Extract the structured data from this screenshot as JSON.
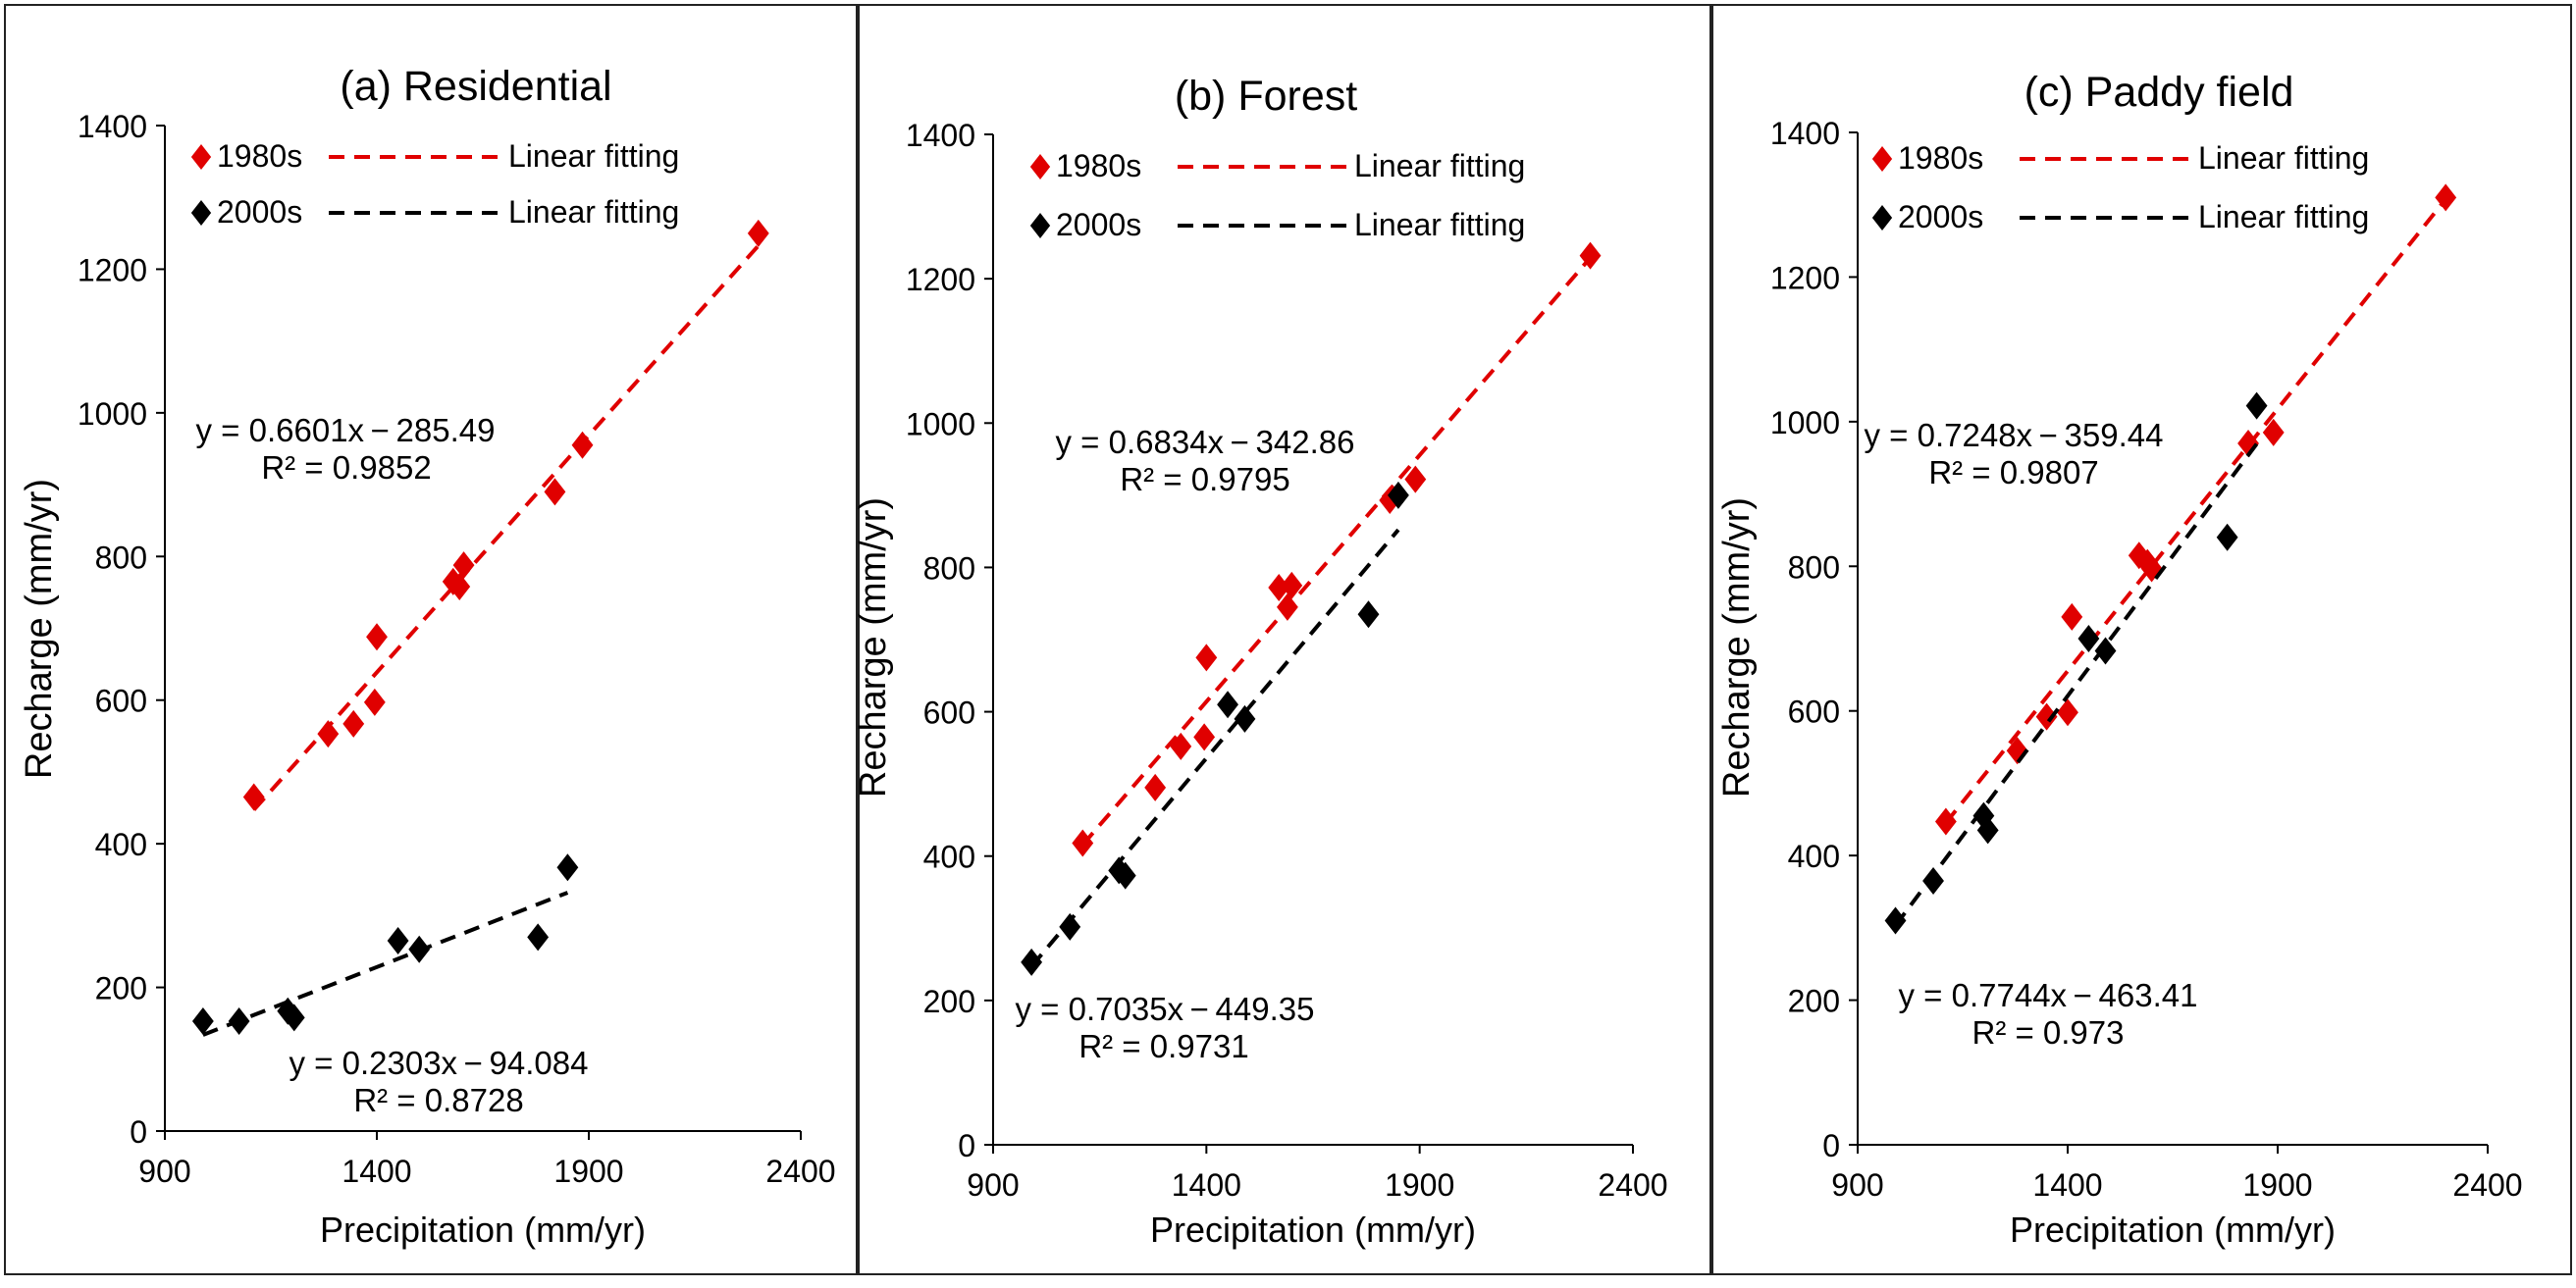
{
  "figure": {
    "xlabel": "Precipitation (mm/yr)",
    "ylabel": "Recharge (mm/yr)"
  },
  "chart_data": [
    {
      "type": "scatter",
      "title": "(a) Residential",
      "xlabel": "Precipitation (mm/yr)",
      "ylabel": "Recharge (mm/yr)",
      "xlim": [
        900,
        2400
      ],
      "ylim": [
        0,
        1400
      ],
      "xticks": [
        900,
        1400,
        1900,
        2400
      ],
      "yticks": [
        0,
        200,
        400,
        600,
        800,
        1000,
        1200,
        1400
      ],
      "legend": [
        {
          "marker": "1980s",
          "line": "Linear fitting",
          "color": "#e00000"
        },
        {
          "marker": "2000s",
          "line": "Linear fitting",
          "color": "#000000"
        }
      ],
      "series": [
        {
          "name": "1980s",
          "color": "#e00000",
          "x": [
            1110,
            1285,
            1345,
            1395,
            1400,
            1580,
            1595,
            1605,
            1820,
            1885,
            2300
          ],
          "y": [
            465,
            553,
            567,
            597,
            688,
            765,
            758,
            788,
            890,
            955,
            1250
          ],
          "fit": {
            "slope": 0.6601,
            "intercept": -285.49,
            "x0": 1110,
            "x1": 2300
          },
          "equation": "y = 0.6601x − 285.49",
          "r2": "R² = 0.9852"
        },
        {
          "name": "2000s",
          "color": "#000000",
          "x": [
            990,
            1075,
            1190,
            1205,
            1450,
            1500,
            1780,
            1850
          ],
          "y": [
            153,
            153,
            167,
            158,
            265,
            253,
            270,
            367
          ],
          "fit": {
            "slope": 0.2303,
            "intercept": -94.084,
            "x0": 990,
            "x1": 1850
          },
          "equation": "y = 0.2303x − 94.084",
          "r2": "R² = 0.8728"
        }
      ]
    },
    {
      "type": "scatter",
      "title": "(b) Forest",
      "xlabel": "Precipitation (mm/yr)",
      "ylabel": "Recharge (mm/yr)",
      "xlim": [
        900,
        2400
      ],
      "ylim": [
        0,
        1400
      ],
      "xticks": [
        900,
        1400,
        1900,
        2400
      ],
      "yticks": [
        0,
        200,
        400,
        600,
        800,
        1000,
        1200,
        1400
      ],
      "legend": [
        {
          "marker": "1980s",
          "line": "Linear fitting",
          "color": "#e00000"
        },
        {
          "marker": "2000s",
          "line": "Linear fitting",
          "color": "#000000"
        }
      ],
      "series": [
        {
          "name": "1980s",
          "color": "#e00000",
          "x": [
            1110,
            1280,
            1340,
            1395,
            1400,
            1570,
            1590,
            1600,
            1830,
            1890,
            2300
          ],
          "y": [
            418,
            495,
            552,
            565,
            675,
            772,
            745,
            775,
            893,
            922,
            1232
          ],
          "fit": {
            "slope": 0.6834,
            "intercept": -342.86,
            "x0": 1110,
            "x1": 2300
          },
          "equation": "y = 0.6834x − 342.86",
          "r2": "R² = 0.9795"
        },
        {
          "name": "2000s",
          "color": "#000000",
          "x": [
            990,
            1080,
            1195,
            1210,
            1450,
            1490,
            1780,
            1850
          ],
          "y": [
            253,
            302,
            380,
            373,
            610,
            590,
            735,
            900
          ],
          "fit": {
            "slope": 0.7035,
            "intercept": -449.35,
            "x0": 990,
            "x1": 1850
          },
          "equation": "y = 0.7035x − 449.35",
          "r2": "R² = 0.9731"
        }
      ]
    },
    {
      "type": "scatter",
      "title": "(c) Paddy field",
      "xlabel": "Precipitation (mm/yr)",
      "ylabel": "Recharge (mm/yr)",
      "xlim": [
        900,
        2400
      ],
      "ylim": [
        0,
        1400
      ],
      "xticks": [
        900,
        1400,
        1900,
        2400
      ],
      "yticks": [
        0,
        200,
        400,
        600,
        800,
        1000,
        1200,
        1400
      ],
      "legend": [
        {
          "marker": "1980s",
          "line": "Linear fitting",
          "color": "#e00000"
        },
        {
          "marker": "2000s",
          "line": "Linear fitting",
          "color": "#000000"
        }
      ],
      "series": [
        {
          "name": "1980s",
          "color": "#e00000",
          "x": [
            1110,
            1280,
            1350,
            1400,
            1410,
            1570,
            1590,
            1600,
            1830,
            1890,
            2300
          ],
          "y": [
            447,
            545,
            592,
            598,
            730,
            815,
            805,
            797,
            970,
            985,
            1310
          ],
          "fit": {
            "slope": 0.7248,
            "intercept": -359.44,
            "x0": 1110,
            "x1": 2300
          },
          "equation": "y = 0.7248x − 359.44",
          "r2": "R² = 0.9807"
        },
        {
          "name": "2000s",
          "color": "#000000",
          "x": [
            990,
            1080,
            1200,
            1210,
            1450,
            1490,
            1780,
            1850
          ],
          "y": [
            310,
            365,
            455,
            435,
            700,
            683,
            840,
            1022
          ],
          "fit": {
            "slope": 0.7744,
            "intercept": -463.41,
            "x0": 990,
            "x1": 1850
          },
          "equation": "y = 0.7744x − 463.41",
          "r2": "R² = 0.973"
        }
      ]
    }
  ]
}
